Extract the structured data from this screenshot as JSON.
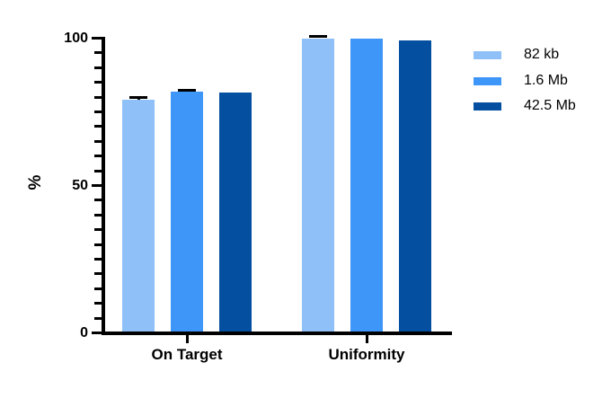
{
  "chart_data": {
    "type": "bar",
    "title": "",
    "ylabel": "%",
    "categories": [
      "On Target",
      "Uniformity"
    ],
    "series": [
      {
        "name": "82 kb",
        "color": "#8FC1F8",
        "values": [
          79.0,
          100.0
        ],
        "errors": [
          0.9,
          0.5
        ]
      },
      {
        "name": "1.6 Mb",
        "color": "#3E96F9",
        "values": [
          81.8,
          99.8
        ],
        "errors": [
          0.6,
          0.0
        ]
      },
      {
        "name": "42.5 Mb",
        "color": "#054FA0",
        "values": [
          81.6,
          99.2
        ],
        "errors": [
          0.0,
          0.0
        ]
      }
    ],
    "ylim": [
      0,
      100
    ],
    "ytick_major": [
      0,
      50,
      100
    ],
    "ytick_minor_step": 5,
    "grid": false,
    "legend_position": "right",
    "axis_color": "#000000",
    "error_bar_color": "#000000",
    "background_color": "#FFFFFF"
  }
}
